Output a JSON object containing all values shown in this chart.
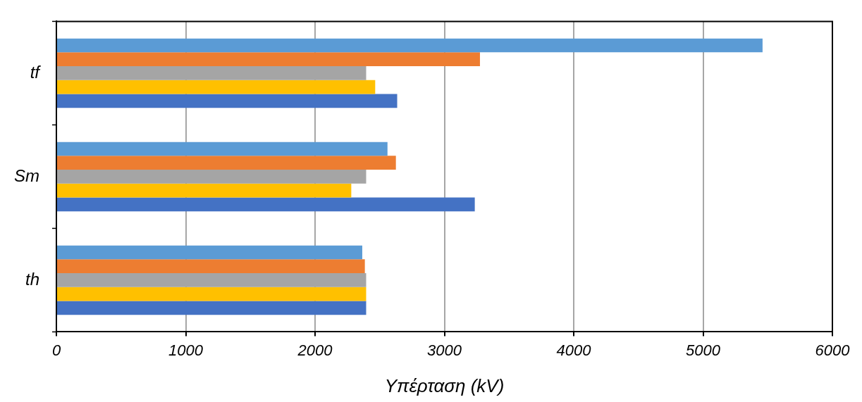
{
  "chart_data": {
    "type": "bar",
    "orientation": "horizontal",
    "xlabel": "Υπέρταση (kV)",
    "categories": [
      "tf",
      "Sm",
      "th"
    ],
    "series": [
      {
        "color": "#5b9bd5",
        "values": [
          5460,
          2560,
          2365
        ]
      },
      {
        "color": "#ed7d31",
        "values": [
          3275,
          2625,
          2385
        ]
      },
      {
        "color": "#a5a5a5",
        "values": [
          2395,
          2395,
          2395
        ]
      },
      {
        "color": "#ffc000",
        "values": [
          2465,
          2280,
          2395
        ]
      },
      {
        "color": "#4472c4",
        "values": [
          2635,
          3235,
          2395
        ]
      }
    ],
    "xlim": [
      0,
      6000
    ],
    "xticks": [
      0,
      1000,
      2000,
      3000,
      4000,
      5000,
      6000
    ],
    "grid": "x",
    "legend": false
  }
}
